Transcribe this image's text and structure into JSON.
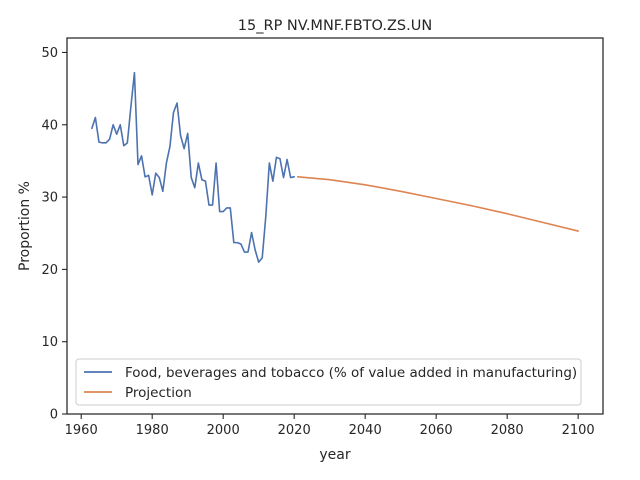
{
  "chart_data": {
    "type": "line",
    "title": "15_RP NV.MNF.FBTO.ZS.UN",
    "xlabel": "year",
    "ylabel": "Proportion %",
    "xlim": [
      1956,
      2107
    ],
    "ylim": [
      0,
      52
    ],
    "xticks": [
      1960,
      1980,
      2000,
      2020,
      2040,
      2060,
      2080,
      2100
    ],
    "yticks": [
      0,
      10,
      20,
      30,
      40,
      50
    ],
    "grid": false,
    "legend_position": "lower-left",
    "series": [
      {
        "name": "Food, beverages and tobacco (% of value added in manufacturing)",
        "color": "#4c72b0",
        "x": [
          1963,
          1964,
          1965,
          1966,
          1967,
          1968,
          1969,
          1970,
          1971,
          1972,
          1973,
          1974,
          1975,
          1976,
          1977,
          1978,
          1979,
          1980,
          1981,
          1982,
          1983,
          1984,
          1985,
          1986,
          1987,
          1988,
          1989,
          1990,
          1991,
          1992,
          1993,
          1994,
          1995,
          1996,
          1997,
          1998,
          1999,
          2000,
          2001,
          2002,
          2003,
          2004,
          2005,
          2006,
          2007,
          2008,
          2009,
          2010,
          2011,
          2012,
          2013,
          2014,
          2015,
          2016,
          2017,
          2018,
          2019,
          2020
        ],
        "y": [
          39.5,
          41.0,
          37.6,
          37.5,
          37.5,
          38.0,
          40.0,
          38.7,
          40.0,
          37.1,
          37.5,
          42.5,
          47.2,
          34.5,
          35.7,
          32.8,
          33.0,
          30.3,
          33.3,
          32.7,
          30.8,
          34.7,
          37.0,
          41.7,
          43.0,
          38.5,
          36.7,
          38.8,
          32.7,
          31.3,
          34.7,
          32.4,
          32.2,
          28.9,
          28.9,
          34.7,
          28.0,
          28.0,
          28.5,
          28.5,
          23.7,
          23.7,
          23.5,
          22.4,
          22.4,
          25.1,
          22.7,
          21.0,
          21.6,
          27.3,
          34.7,
          32.2,
          35.5,
          35.3,
          32.7,
          35.2,
          32.7,
          32.8
        ]
      },
      {
        "name": "Projection",
        "color": "#dd8452",
        "x": [
          2021,
          2030,
          2040,
          2050,
          2060,
          2070,
          2080,
          2090,
          2100
        ],
        "y": [
          32.8,
          32.4,
          31.7,
          30.8,
          29.8,
          28.8,
          27.7,
          26.5,
          25.3
        ]
      }
    ]
  }
}
